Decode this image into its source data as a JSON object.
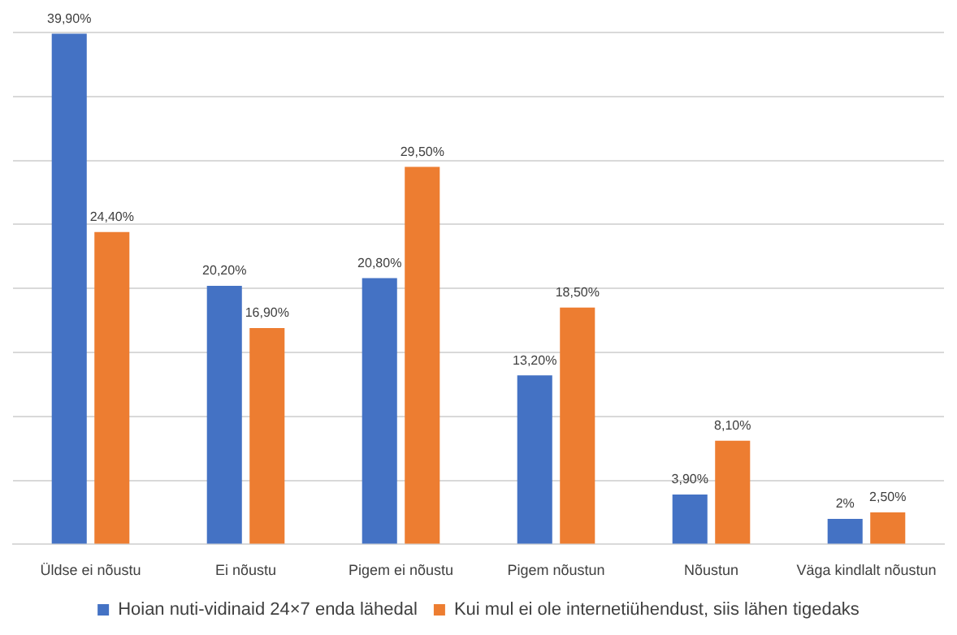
{
  "chart_data": {
    "type": "bar",
    "categories": [
      "Üldse ei nõustu",
      "Ei nõustu",
      "Pigem ei nõustu",
      "Pigem nõustun",
      "Nõustun",
      "Väga kindlalt nõustun"
    ],
    "series": [
      {
        "name": "Hoian nuti-vidinaid 24×7 enda lähedal",
        "color": "#4472c4",
        "values": [
          39.9,
          20.2,
          20.8,
          13.2,
          3.9,
          2
        ],
        "value_labels": [
          "39,90%",
          "20,20%",
          "20,80%",
          "13,20%",
          "3,90%",
          "2%"
        ]
      },
      {
        "name": "Kui mul ei ole internetiühendust, siis lähen tigedaks",
        "color": "#ed7d31",
        "values": [
          24.4,
          16.9,
          29.5,
          18.5,
          8.1,
          2.5
        ],
        "value_labels": [
          "24,40%",
          "16,90%",
          "29,50%",
          "18,50%",
          "8,10%",
          "2,50%"
        ]
      }
    ],
    "ylim": [
      0,
      40
    ],
    "yticks": [
      {
        "value": 0,
        "label": null
      },
      {
        "value": 5,
        "label": null
      },
      {
        "value": 10,
        "label": null
      },
      {
        "value": 15,
        "label": null
      },
      {
        "value": 20,
        "label": null
      },
      {
        "value": 25,
        "label": null
      },
      {
        "value": 30,
        "label": null
      },
      {
        "value": 35,
        "label": null
      },
      {
        "value": 40,
        "label": null
      }
    ],
    "tick_labels": "x",
    "grid": "y",
    "legend": "bottom"
  }
}
